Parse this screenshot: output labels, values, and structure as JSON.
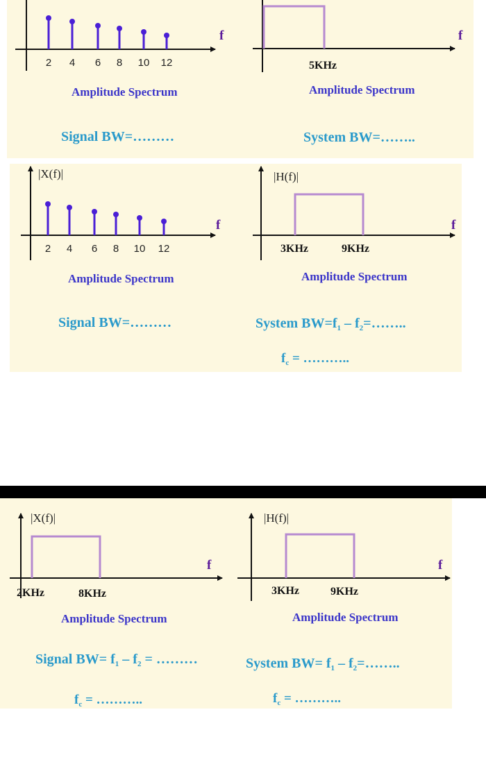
{
  "colors": {
    "panel": "#fdf8e0",
    "axis": "#111111",
    "stem": "#4a1fd6",
    "box": "#b68ad0",
    "amp_text": "#3b35c9",
    "bw_text": "#2a9acb"
  },
  "section1": {
    "signal": {
      "ticks": [
        "2",
        "4",
        "6",
        "8",
        "10",
        "12"
      ],
      "f_label": "f",
      "caption": "Amplitude Spectrum",
      "bw": "Signal BW=………"
    },
    "system": {
      "tick": "5KHz",
      "f_label": "f",
      "caption": "Amplitude Spectrum",
      "bw": "System BW=…….."
    }
  },
  "section2": {
    "signal": {
      "y_label": "|X(f)|",
      "ticks": [
        "2",
        "4",
        "6",
        "8",
        "10",
        "12"
      ],
      "f_label": "f",
      "caption": "Amplitude Spectrum",
      "bw": "Signal BW=………"
    },
    "system": {
      "y_label": "|H(f)|",
      "tick_low": "3KHz",
      "tick_high": "9KHz",
      "f_label": "f",
      "caption": "Amplitude Spectrum",
      "bw_pre": "System BW=f",
      "s1": "1",
      "minus": " – f",
      "s2": "2",
      "bw_post": "=……..",
      "fc_f": "f",
      "fc_sub": "c",
      "fc_rest": " = ……….."
    }
  },
  "section3": {
    "signal": {
      "y_label": "|X(f)|",
      "tick_low": "2KHz",
      "tick_high": "8KHz",
      "f_label": "f",
      "caption": "Amplitude Spectrum",
      "bw_pre": "Signal BW= f",
      "s1": "1",
      "minus": " – f",
      "s2": "2",
      "bw_post": " = ………",
      "fc_f": "f",
      "fc_sub": "c",
      "fc_rest": " = ……….."
    },
    "system": {
      "y_label": "|H(f)|",
      "tick_low": "3KHz",
      "tick_high": "9KHz",
      "f_label": "f",
      "caption": "Amplitude Spectrum",
      "bw_pre": "System BW= f",
      "s1": "1",
      "minus": " – f",
      "s2": "2",
      "bw_post": "=……..",
      "fc_f": "f",
      "fc_sub": "c",
      "fc_rest": " = ……….."
    }
  },
  "stem_heights": [
    45,
    40,
    34,
    30,
    25,
    20
  ]
}
